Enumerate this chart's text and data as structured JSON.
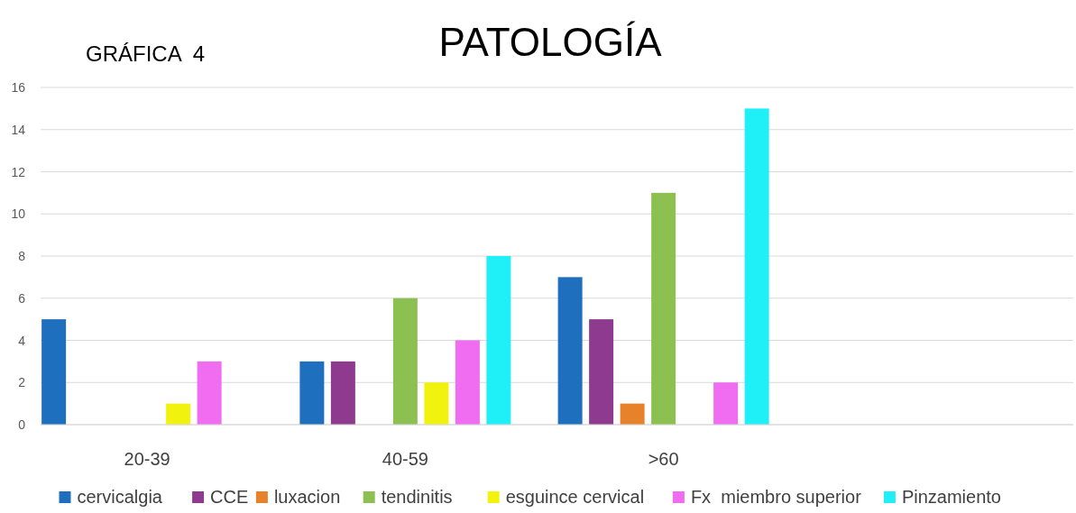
{
  "chart_data": {
    "type": "bar",
    "title": "PATOLOGÍA",
    "annotations": [
      "GRÁFICA  4"
    ],
    "categories": [
      "20-39",
      "40-59",
      ">60",
      null
    ],
    "series": [
      {
        "name": "cervicalgia",
        "color": "#1f6fbf",
        "values": [
          5,
          3,
          7,
          null
        ]
      },
      {
        "name": "CCE",
        "color": "#8e3a8e",
        "values": [
          0,
          3,
          5,
          null
        ]
      },
      {
        "name": "luxacion",
        "color": "#e8822a",
        "values": [
          0,
          0,
          1,
          null
        ]
      },
      {
        "name": "tendinitis",
        "color": "#8cc152",
        "values": [
          0,
          6,
          11,
          null
        ]
      },
      {
        "name": "esguince cervical",
        "color": "#f2f20f",
        "values": [
          1,
          2,
          0,
          null
        ]
      },
      {
        "name": "Fx  miembro superior",
        "color": "#f06cf0",
        "values": [
          3,
          4,
          2,
          null
        ]
      },
      {
        "name": "Pinzamiento",
        "color": "#1ff0f8",
        "values": [
          0,
          8,
          15,
          null
        ]
      }
    ],
    "ylim": [
      0,
      16
    ],
    "yticks": [
      0,
      2,
      4,
      6,
      8,
      10,
      12,
      14,
      16
    ],
    "grid": "y",
    "legend": "bottom"
  }
}
